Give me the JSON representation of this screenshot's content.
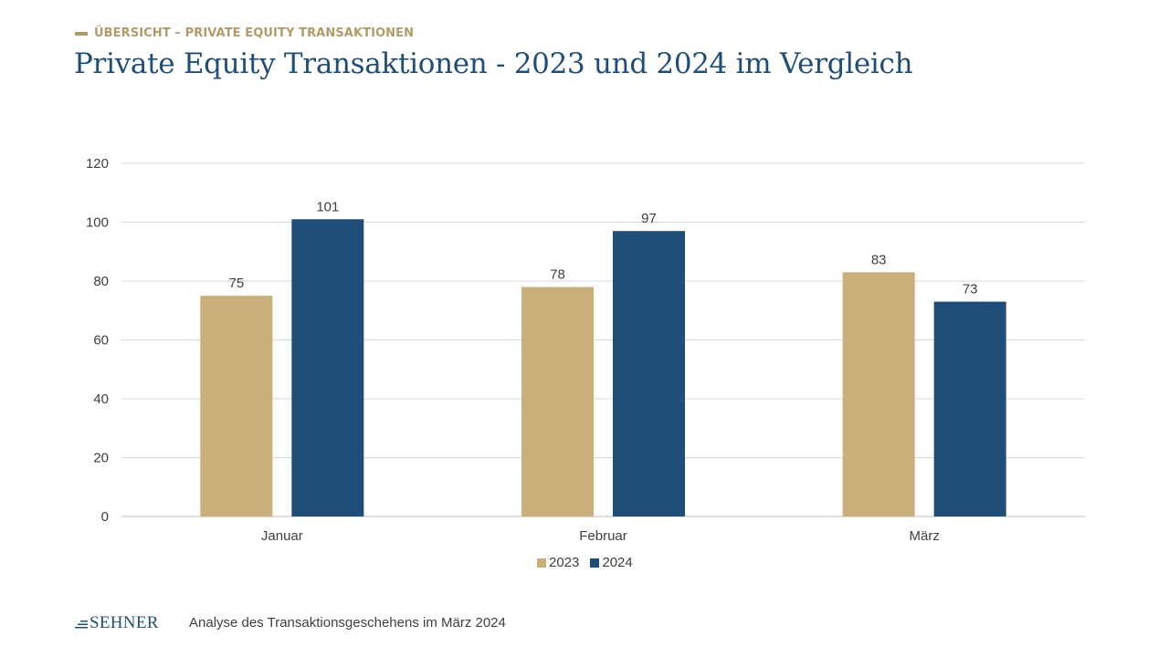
{
  "header": {
    "kicker": "ÜBERSICHT – PRIVATE EQUITY TRANSAKTIONEN",
    "title": "Private Equity Transaktionen - 2023 und 2024 im Vergleich"
  },
  "footer": {
    "logo_text": "SEHNER",
    "caption": "Analyse des Transaktionsgeschehens im März 2024"
  },
  "colors": {
    "accent_gold": "#c9b07a",
    "brand_blue": "#1f4e79",
    "kicker_gold": "#b39b67",
    "grid": "#d9d9d9",
    "text": "#404040"
  },
  "chart_data": {
    "type": "bar",
    "categories": [
      "Januar",
      "Februar",
      "März"
    ],
    "series": [
      {
        "name": "2023",
        "values": [
          75,
          78,
          83
        ],
        "color": "#c9b07a"
      },
      {
        "name": "2024",
        "values": [
          101,
          97,
          73
        ],
        "color": "#1f4e79"
      }
    ],
    "ylim": [
      0,
      120
    ],
    "yticks": [
      0,
      20,
      40,
      60,
      80,
      100,
      120
    ],
    "grid": true,
    "legend": "bottom-center",
    "data_labels": true
  }
}
